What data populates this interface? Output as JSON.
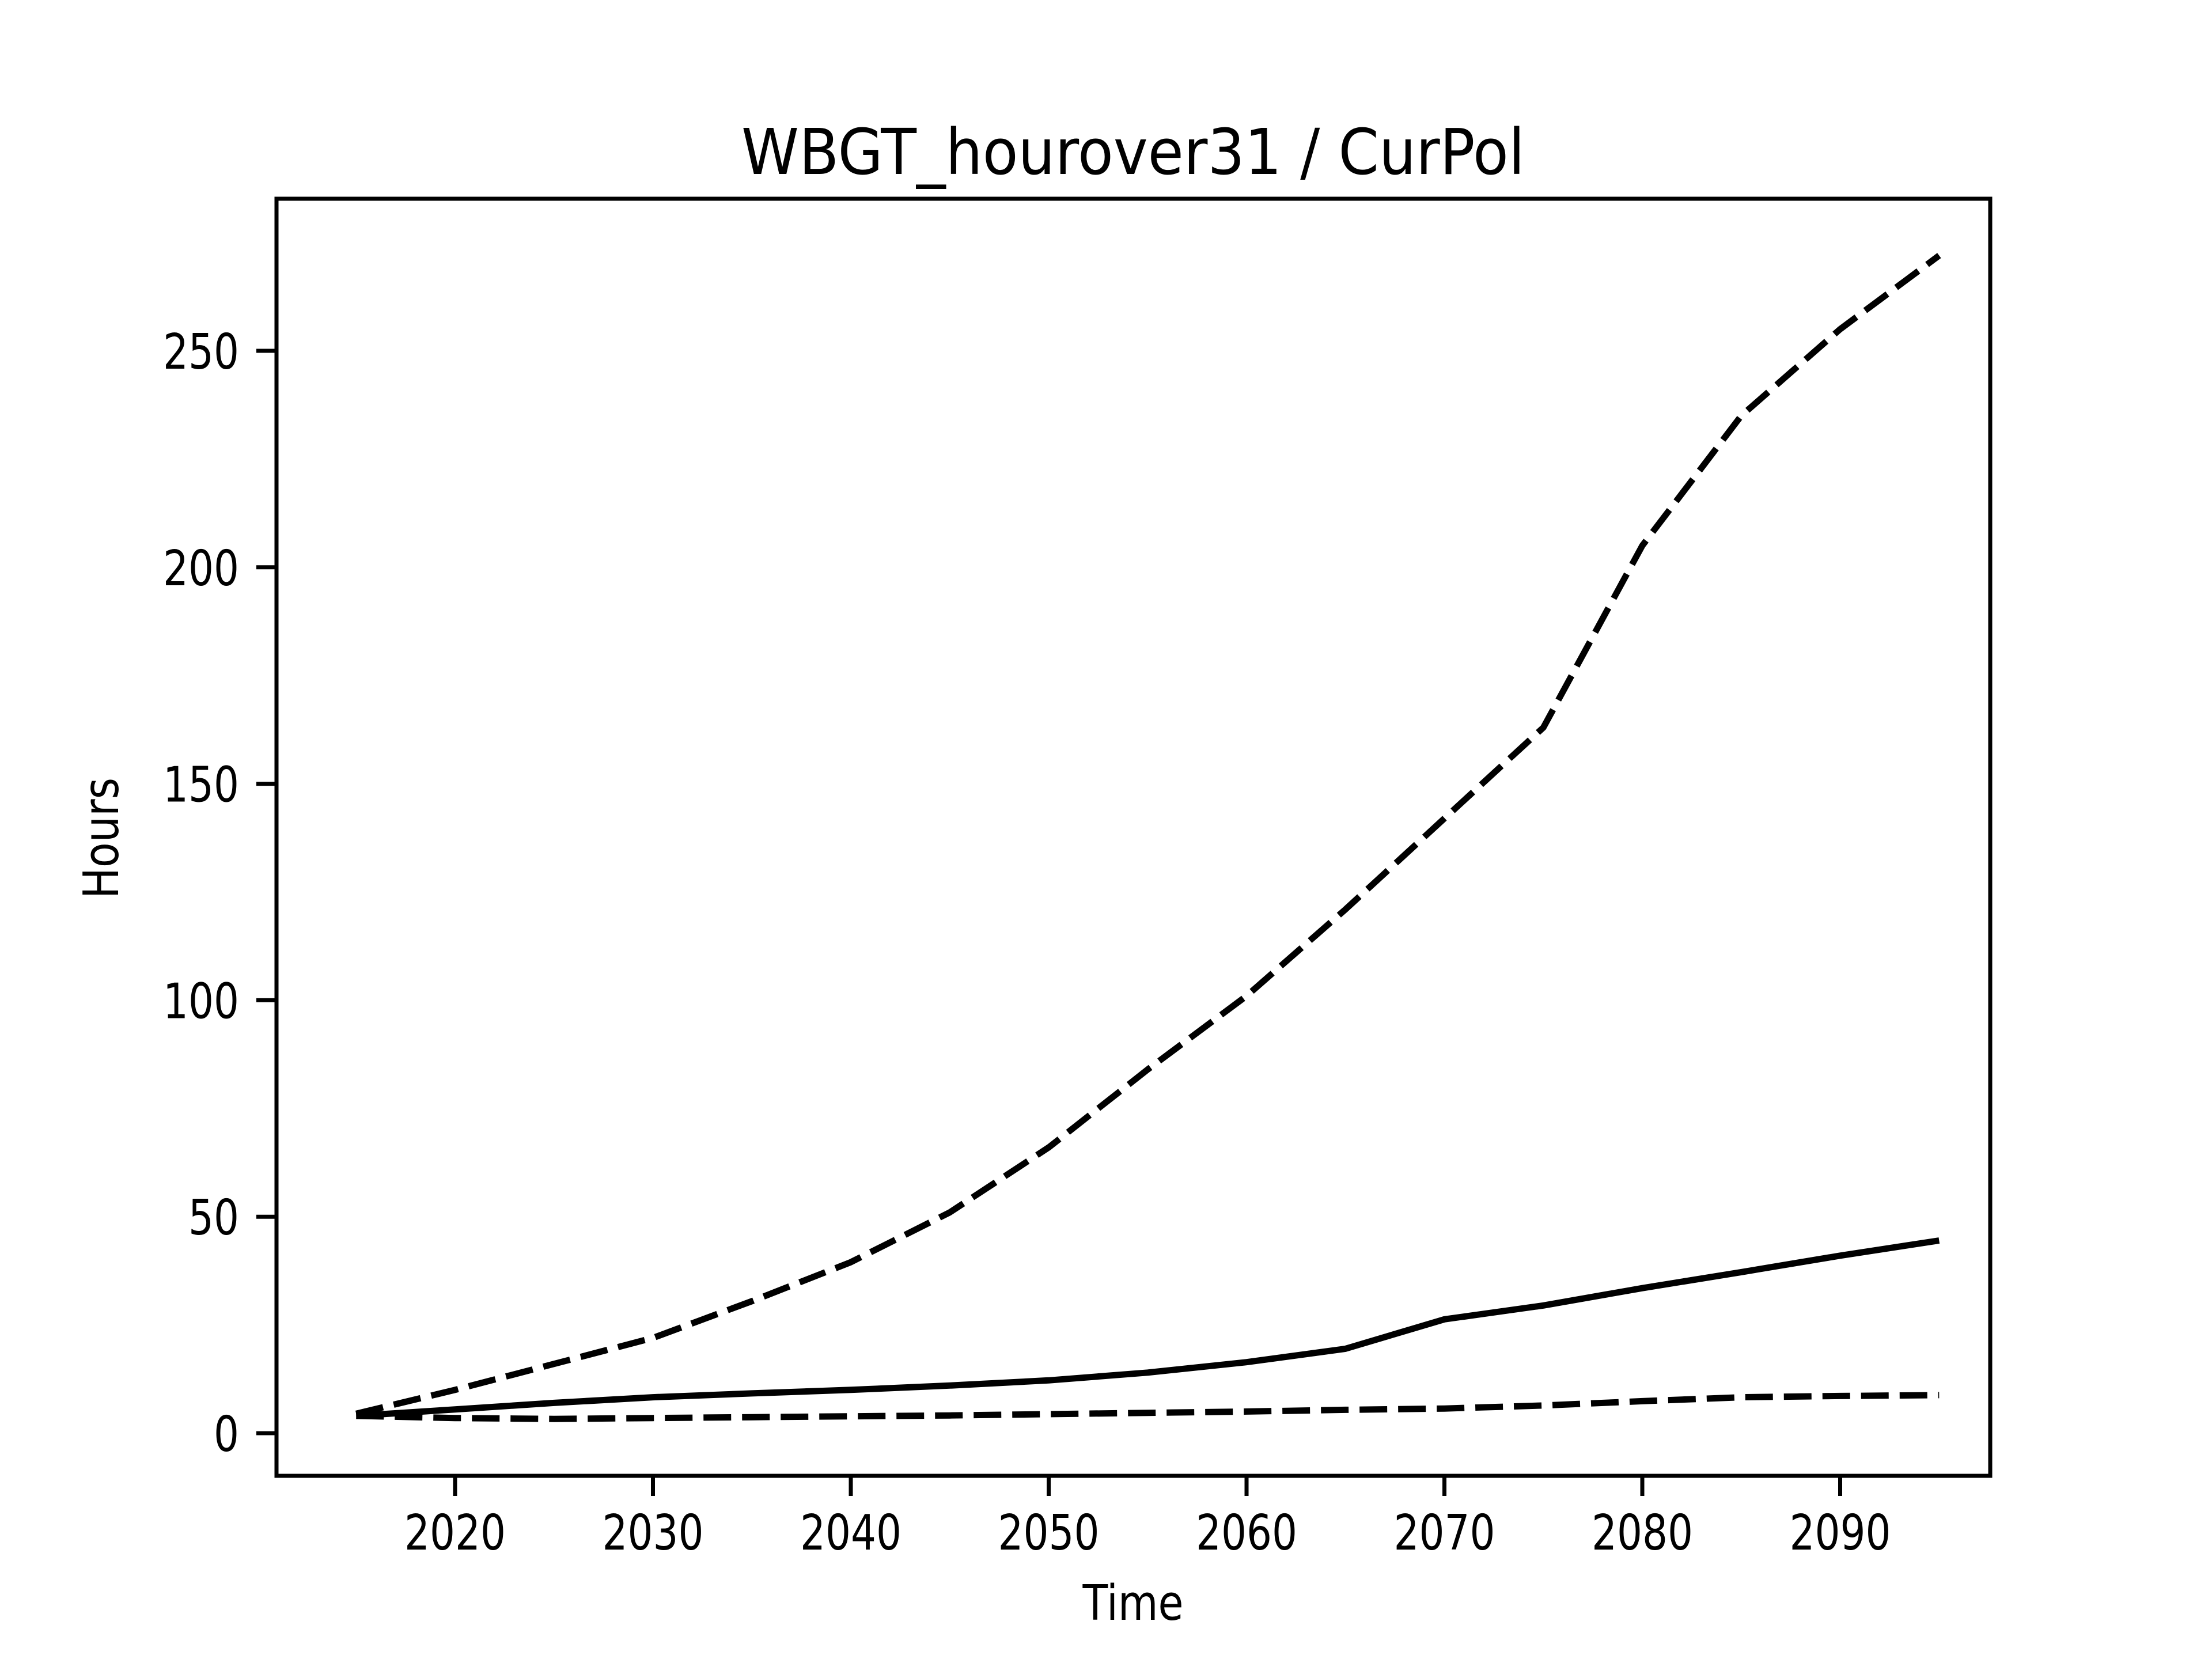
{
  "figure": {
    "background": "#ffffff",
    "line_color": "#000000",
    "text_color": "#000000"
  },
  "chart_data": {
    "type": "line",
    "title": "WBGT_hourover31 / CurPol",
    "xlabel": "Time",
    "ylabel": "Hours",
    "grid": false,
    "legend_visible": false,
    "xlim": [
      2011.3,
      2097.7
    ],
    "ylim": [
      -9.8,
      284.7
    ],
    "x_ticks": [
      2020,
      2030,
      2040,
      2050,
      2060,
      2070,
      2080,
      2090
    ],
    "y_ticks": [
      0,
      50,
      100,
      150,
      200,
      250
    ],
    "x": [
      2015,
      2020,
      2025,
      2030,
      2035,
      2040,
      2045,
      2050,
      2055,
      2060,
      2065,
      2070,
      2075,
      2080,
      2085,
      2090,
      2095
    ],
    "series": [
      {
        "name": "upper-dashed",
        "style": "dashed",
        "values": [
          4.5,
          10,
          16,
          22,
          30.5,
          39.5,
          51,
          66,
          84,
          101,
          121,
          142,
          163,
          205,
          235,
          255,
          272
        ]
      },
      {
        "name": "solid",
        "style": "solid",
        "values": [
          4,
          5.5,
          7,
          8.3,
          9.2,
          10,
          11,
          12.2,
          14,
          16.4,
          19.5,
          26.3,
          29.5,
          33.5,
          37.2,
          41,
          44.5
        ]
      },
      {
        "name": "lower-dashed",
        "style": "dashed",
        "values": [
          4,
          3.5,
          3.3,
          3.5,
          3.7,
          3.9,
          4.1,
          4.4,
          4.7,
          5,
          5.4,
          5.7,
          6.4,
          7.4,
          8.3,
          8.6,
          8.8
        ]
      }
    ]
  }
}
